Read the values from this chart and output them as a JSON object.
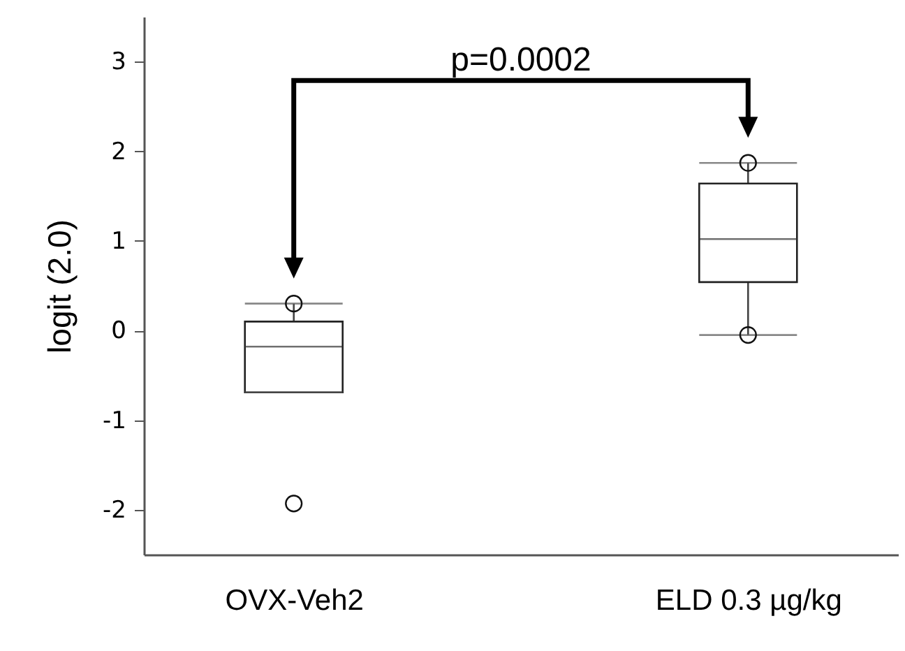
{
  "chart_data": {
    "type": "box",
    "ylabel": "logit (2.0)",
    "categories": [
      "OVX-Veh2",
      "ELD 0.3 µg/kg"
    ],
    "boxes": [
      {
        "low": -0.69,
        "q1": -0.69,
        "median": -0.18,
        "q3": 0.1,
        "high": 0.3,
        "outliers": [
          0.3,
          -1.93
        ]
      },
      {
        "low": -0.05,
        "q1": 0.54,
        "median": 1.02,
        "q3": 1.64,
        "high": 1.87,
        "outliers": [
          1.87,
          -0.05
        ]
      }
    ],
    "ylim": [
      -2.5,
      3.5
    ],
    "yticks": [
      -2,
      -1,
      0,
      1,
      2,
      3
    ],
    "grid": false,
    "annotations": [
      "p=0.0002"
    ]
  }
}
